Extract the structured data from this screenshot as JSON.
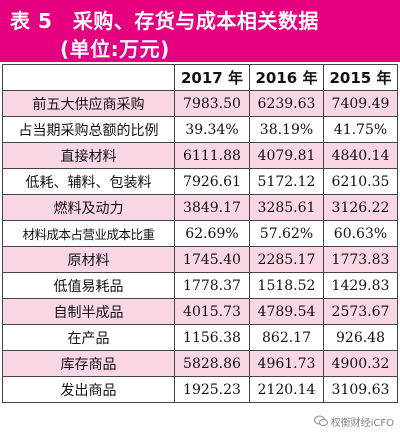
{
  "title": {
    "line1": "表 5　采购、存货与成本相关数据",
    "line2": "(单位:万元)"
  },
  "table": {
    "columns": [
      "",
      "2017 年",
      "2016 年",
      "2015 年"
    ],
    "rows": [
      {
        "label": "前五大供应商采购",
        "values": [
          "7983.50",
          "6239.63",
          "7409.49"
        ]
      },
      {
        "label": "占当期采购总额的比例",
        "values": [
          "39.34%",
          "38.19%",
          "41.75%"
        ]
      },
      {
        "label": "直接材料",
        "values": [
          "6111.88",
          "4079.81",
          "4840.14"
        ]
      },
      {
        "label": "低耗、辅料、包装料",
        "values": [
          "7926.61",
          "5172.12",
          "6210.35"
        ]
      },
      {
        "label": "燃料及动力",
        "values": [
          "3849.17",
          "3285.61",
          "3126.22"
        ]
      },
      {
        "label": "材料成本占营业成本比重",
        "values": [
          "62.69%",
          "57.62%",
          "60.63%"
        ]
      },
      {
        "label": "原材料",
        "values": [
          "1745.40",
          "2285.17",
          "1773.83"
        ]
      },
      {
        "label": "低值易耗品",
        "values": [
          "1778.37",
          "1518.52",
          "1429.83"
        ]
      },
      {
        "label": "自制半成品",
        "values": [
          "4015.73",
          "4789.54",
          "2573.67"
        ]
      },
      {
        "label": "在产品",
        "values": [
          "1156.38",
          "862.17",
          "926.48"
        ]
      },
      {
        "label": "库存商品",
        "values": [
          "5828.86",
          "4961.73",
          "4900.32"
        ]
      },
      {
        "label": "发出商品",
        "values": [
          "1925.23",
          "2120.14",
          "3109.63"
        ]
      }
    ]
  },
  "watermark": {
    "text": "权衡财经iCFO",
    "icon": "wechat-icon"
  },
  "colors": {
    "title_bg": "#e4007f",
    "pink_row": "#f9d6e6",
    "border": "#444444"
  }
}
